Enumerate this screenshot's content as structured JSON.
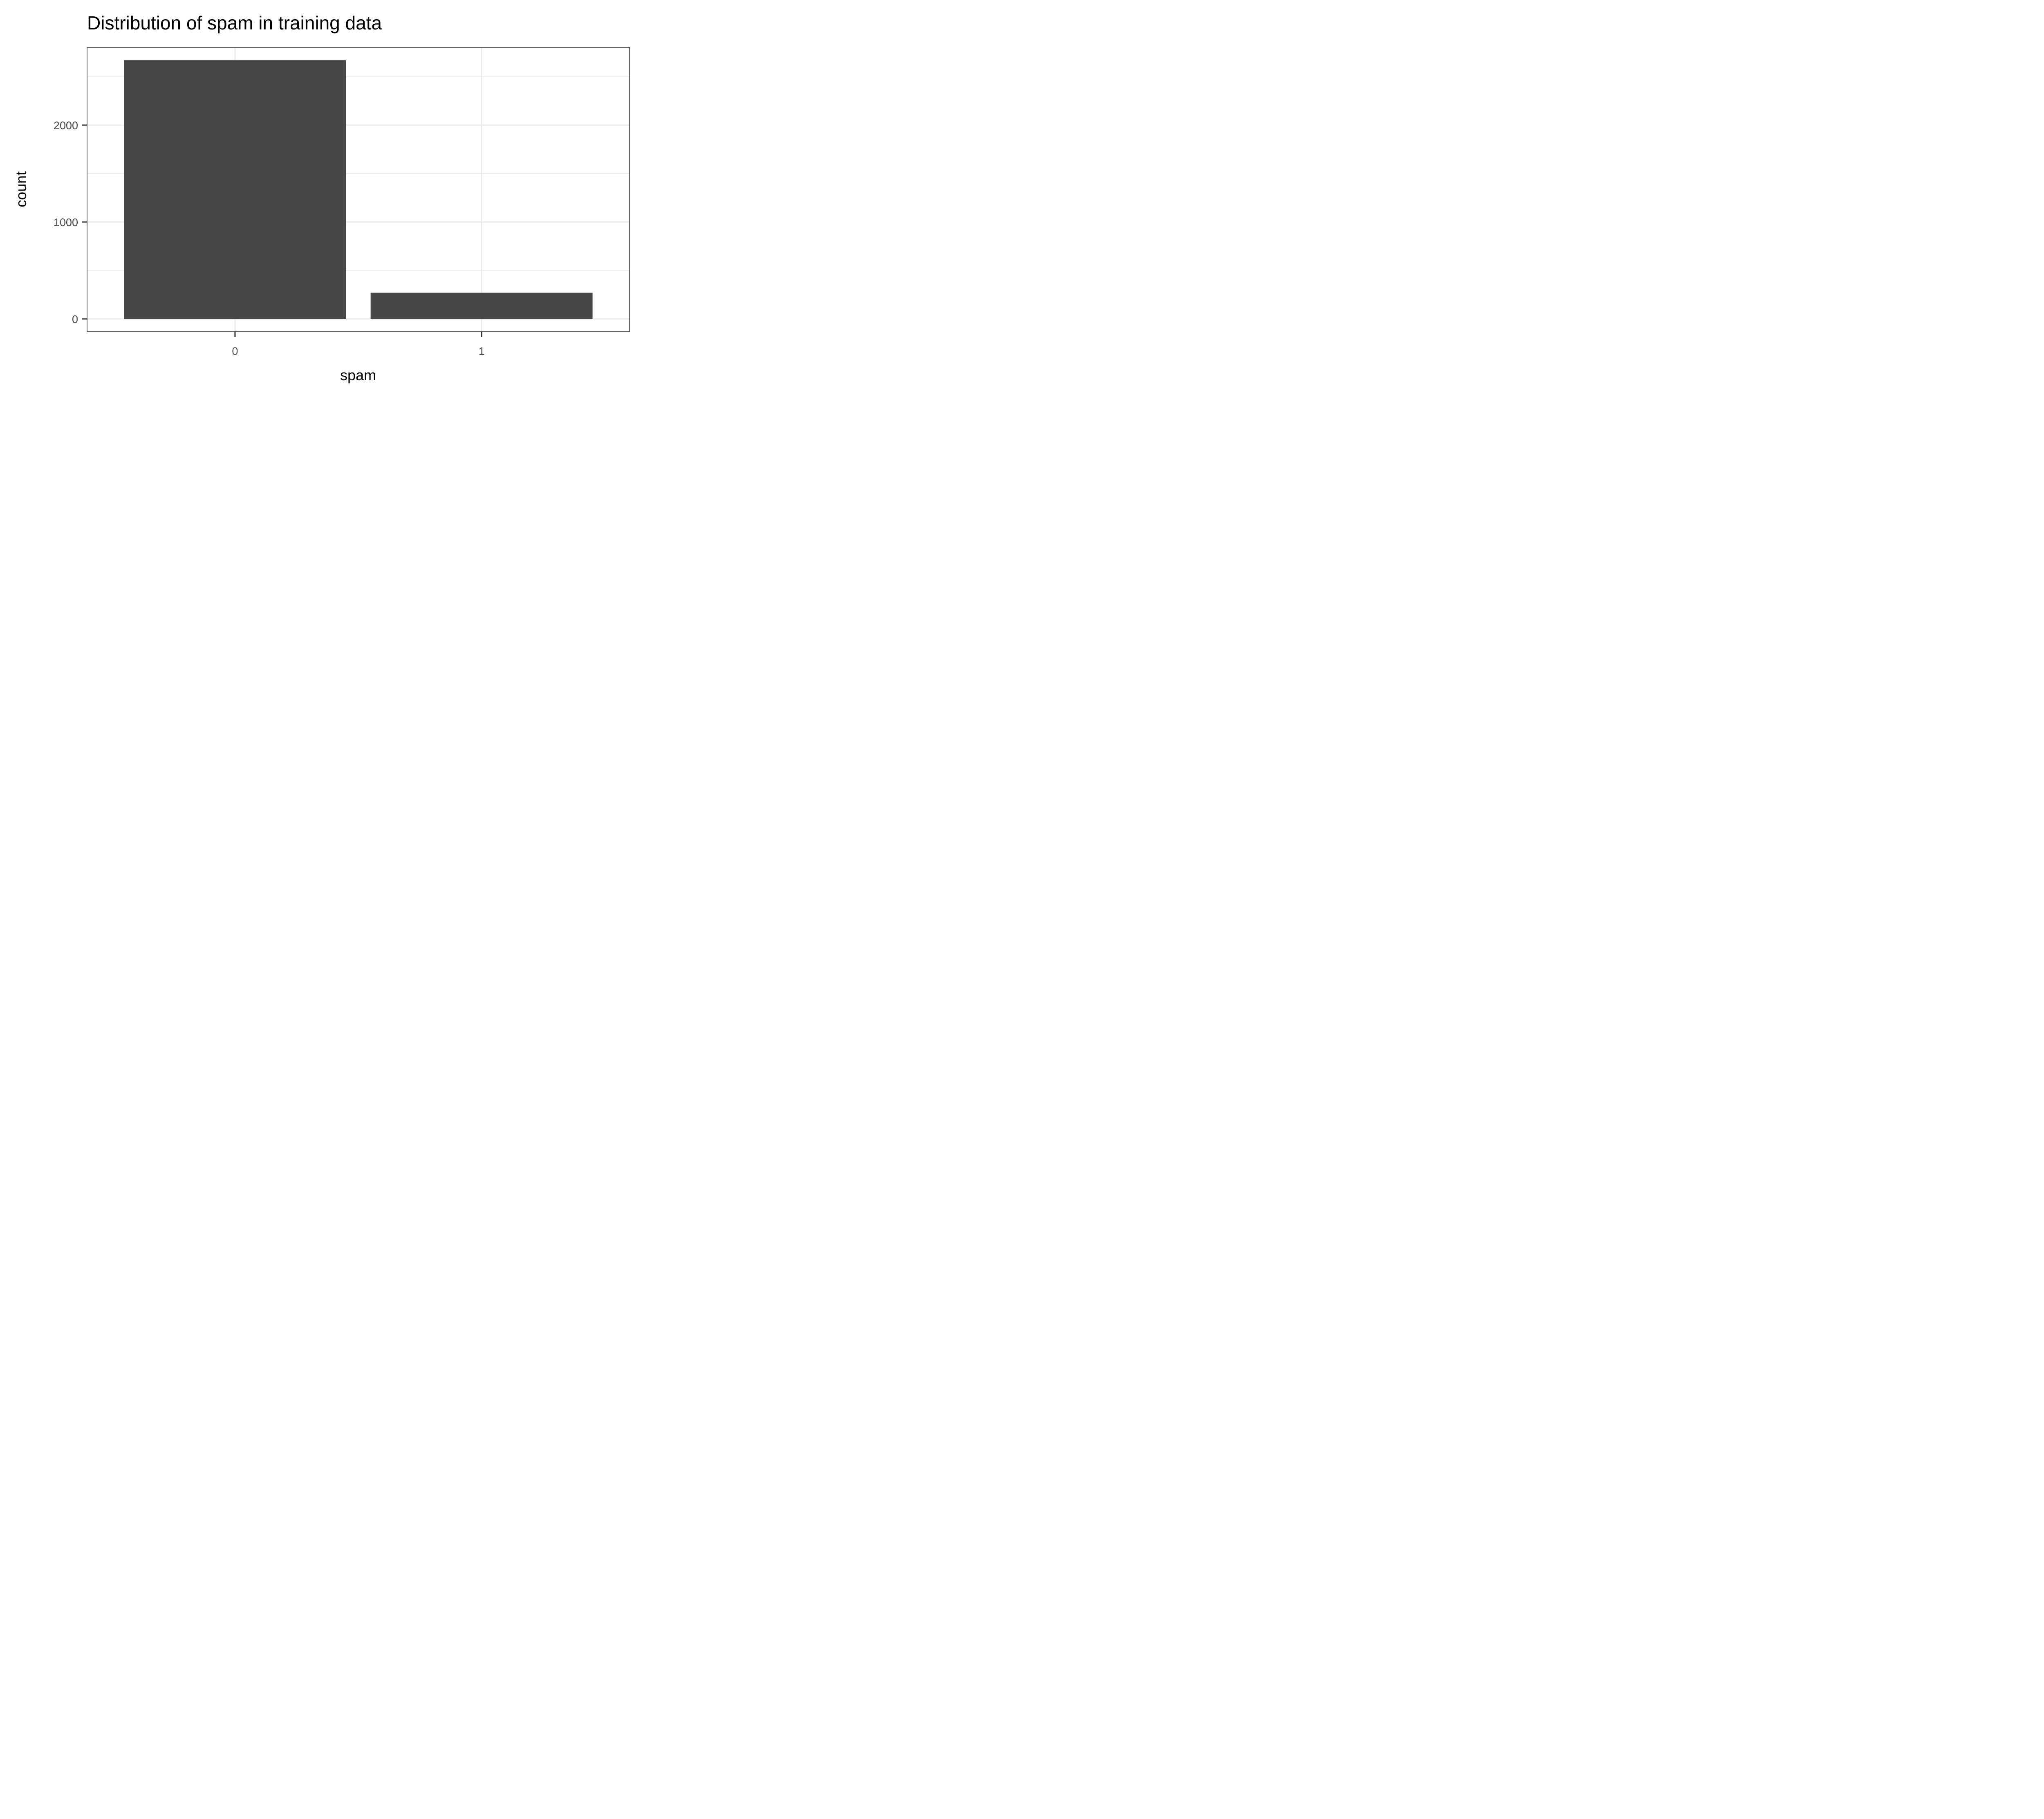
{
  "chart_data": {
    "type": "bar",
    "title": "Distribution of spam in training data",
    "xlabel": "spam",
    "ylabel": "count",
    "categories": [
      "0",
      "1"
    ],
    "values": [
      2670,
      271
    ],
    "ylim": [
      -130,
      2800
    ],
    "yticks": [
      0,
      1000,
      2000
    ],
    "ytick_labels": [
      "0",
      "1000",
      "2000"
    ],
    "grid": true,
    "bar_color": "#474747",
    "grid_color": "#ebebeb",
    "panel_border_color": "#333333"
  }
}
